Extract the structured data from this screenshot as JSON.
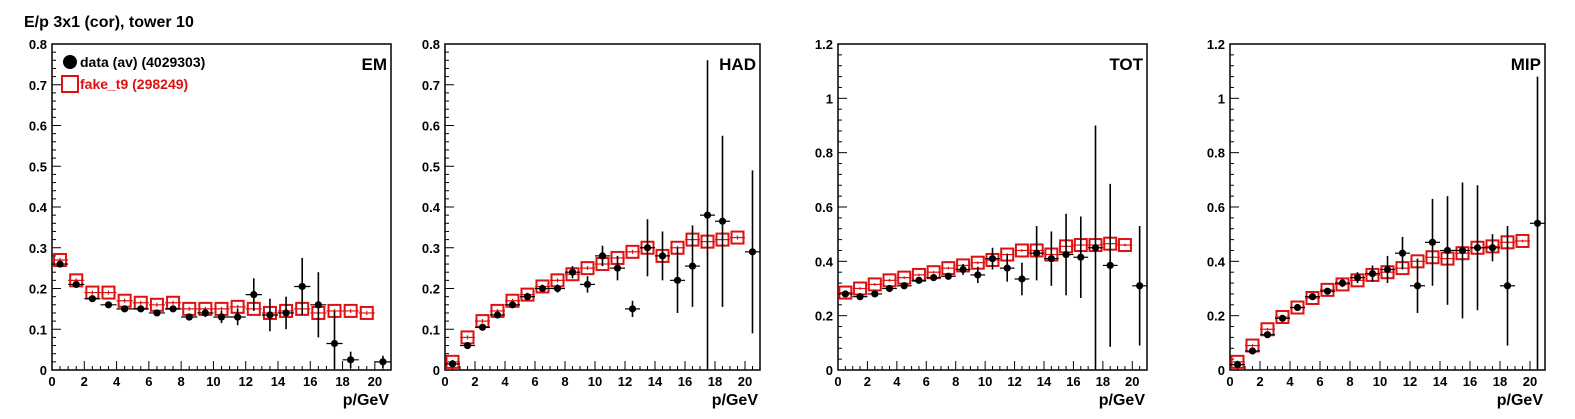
{
  "figure": {
    "title": "E/p 3x1 (cor), tower 10",
    "legend": [
      {
        "label": "data (av) (4029303)",
        "color": "#000000",
        "marker": "filled-circle"
      },
      {
        "label": "fake_t9 (298249)",
        "color": "#dd1111",
        "marker": "open-square"
      }
    ]
  },
  "chart_data": [
    {
      "type": "scatter",
      "label": "EM",
      "xlabel": "p/GeV",
      "xlim": [
        0,
        21
      ],
      "ylim": [
        0,
        0.8
      ],
      "xticks": [
        0,
        2,
        4,
        6,
        8,
        10,
        12,
        14,
        16,
        18,
        20
      ],
      "yticks": [
        0,
        0.1,
        0.2,
        0.3,
        0.4,
        0.5,
        0.6,
        0.7,
        0.8
      ],
      "series": [
        {
          "name": "data (av) (4029303)",
          "x": [
            0.5,
            1.5,
            2.5,
            3.5,
            4.5,
            5.5,
            6.5,
            7.5,
            8.5,
            9.5,
            10.5,
            11.5,
            12.5,
            13.5,
            14.5,
            15.5,
            16.5,
            17.5,
            18.5,
            20.5
          ],
          "y": [
            0.26,
            0.21,
            0.175,
            0.16,
            0.15,
            0.15,
            0.14,
            0.15,
            0.13,
            0.14,
            0.13,
            0.13,
            0.185,
            0.135,
            0.14,
            0.205,
            0.16,
            0.065,
            0.025,
            0.02
          ],
          "yerr": [
            0.004,
            0.004,
            0.004,
            0.004,
            0.005,
            0.005,
            0.006,
            0.007,
            0.008,
            0.01,
            0.015,
            0.02,
            0.04,
            0.04,
            0.04,
            0.07,
            0.08,
            0.08,
            0.02,
            0.015
          ]
        },
        {
          "name": "fake_t9 (298249)",
          "x": [
            0.5,
            1.5,
            2.5,
            3.5,
            4.5,
            5.5,
            6.5,
            7.5,
            8.5,
            9.5,
            10.5,
            11.5,
            12.5,
            13.5,
            14.5,
            15.5,
            16.5,
            17.5,
            18.5,
            19.5
          ],
          "y": [
            0.27,
            0.22,
            0.19,
            0.19,
            0.17,
            0.165,
            0.16,
            0.165,
            0.15,
            0.15,
            0.15,
            0.155,
            0.15,
            0.14,
            0.145,
            0.15,
            0.14,
            0.145,
            0.145,
            0.14
          ],
          "yerr": [
            0.005,
            0.005,
            0.005,
            0.005,
            0.005,
            0.005,
            0.005,
            0.005,
            0.005,
            0.005,
            0.005,
            0.005,
            0.005,
            0.005,
            0.005,
            0.005,
            0.005,
            0.005,
            0.005,
            0.005
          ]
        }
      ]
    },
    {
      "type": "scatter",
      "label": "HAD",
      "xlabel": "p/GeV",
      "xlim": [
        0,
        21
      ],
      "ylim": [
        0,
        0.8
      ],
      "xticks": [
        0,
        2,
        4,
        6,
        8,
        10,
        12,
        14,
        16,
        18,
        20
      ],
      "yticks": [
        0,
        0.1,
        0.2,
        0.3,
        0.4,
        0.5,
        0.6,
        0.7,
        0.8
      ],
      "series": [
        {
          "name": "data (av) (4029303)",
          "x": [
            0.5,
            1.5,
            2.5,
            3.5,
            4.5,
            5.5,
            6.5,
            7.5,
            8.5,
            9.5,
            10.5,
            11.5,
            12.5,
            13.5,
            14.5,
            15.5,
            16.5,
            17.5,
            18.5,
            20.5
          ],
          "y": [
            0.015,
            0.06,
            0.105,
            0.135,
            0.16,
            0.18,
            0.2,
            0.2,
            0.24,
            0.21,
            0.28,
            0.25,
            0.15,
            0.3,
            0.28,
            0.22,
            0.255,
            0.38,
            0.365,
            0.29
          ],
          "yerr": [
            0.003,
            0.004,
            0.005,
            0.005,
            0.006,
            0.007,
            0.008,
            0.01,
            0.015,
            0.02,
            0.025,
            0.03,
            0.02,
            0.07,
            0.06,
            0.08,
            0.1,
            0.38,
            0.21,
            0.2
          ]
        },
        {
          "name": "fake_t9 (298249)",
          "x": [
            0.5,
            1.5,
            2.5,
            3.5,
            4.5,
            5.5,
            6.5,
            7.5,
            8.5,
            9.5,
            10.5,
            11.5,
            12.5,
            13.5,
            14.5,
            15.5,
            16.5,
            17.5,
            18.5,
            19.5
          ],
          "y": [
            0.02,
            0.08,
            0.12,
            0.145,
            0.17,
            0.185,
            0.205,
            0.22,
            0.235,
            0.25,
            0.26,
            0.275,
            0.29,
            0.3,
            0.28,
            0.3,
            0.32,
            0.315,
            0.32,
            0.325
          ],
          "yerr": [
            0.005,
            0.005,
            0.005,
            0.005,
            0.005,
            0.005,
            0.005,
            0.005,
            0.005,
            0.005,
            0.005,
            0.005,
            0.005,
            0.005,
            0.005,
            0.005,
            0.005,
            0.005,
            0.005,
            0.005
          ]
        }
      ]
    },
    {
      "type": "scatter",
      "label": "TOT",
      "xlabel": "p/GeV",
      "xlim": [
        0,
        21
      ],
      "ylim": [
        0,
        1.2
      ],
      "xticks": [
        0,
        2,
        4,
        6,
        8,
        10,
        12,
        14,
        16,
        18,
        20
      ],
      "yticks": [
        0,
        0.2,
        0.4,
        0.6,
        0.8,
        1,
        1.2
      ],
      "series": [
        {
          "name": "data (av) (4029303)",
          "x": [
            0.5,
            1.5,
            2.5,
            3.5,
            4.5,
            5.5,
            6.5,
            7.5,
            8.5,
            9.5,
            10.5,
            11.5,
            12.5,
            13.5,
            14.5,
            15.5,
            16.5,
            17.5,
            18.5,
            20.5
          ],
          "y": [
            0.28,
            0.27,
            0.28,
            0.3,
            0.31,
            0.33,
            0.34,
            0.345,
            0.37,
            0.35,
            0.41,
            0.375,
            0.335,
            0.43,
            0.41,
            0.425,
            0.415,
            0.45,
            0.385,
            0.31
          ],
          "yerr": [
            0.004,
            0.005,
            0.005,
            0.006,
            0.007,
            0.008,
            0.01,
            0.012,
            0.02,
            0.03,
            0.04,
            0.05,
            0.06,
            0.1,
            0.1,
            0.15,
            0.15,
            0.45,
            0.3,
            0.22
          ]
        },
        {
          "name": "fake_t9 (298249)",
          "x": [
            0.5,
            1.5,
            2.5,
            3.5,
            4.5,
            5.5,
            6.5,
            7.5,
            8.5,
            9.5,
            10.5,
            11.5,
            12.5,
            13.5,
            14.5,
            15.5,
            16.5,
            17.5,
            18.5,
            19.5
          ],
          "y": [
            0.285,
            0.3,
            0.315,
            0.33,
            0.34,
            0.35,
            0.36,
            0.375,
            0.385,
            0.395,
            0.405,
            0.425,
            0.44,
            0.44,
            0.425,
            0.455,
            0.46,
            0.46,
            0.465,
            0.46
          ],
          "yerr": [
            0.005,
            0.005,
            0.005,
            0.005,
            0.005,
            0.005,
            0.005,
            0.005,
            0.005,
            0.005,
            0.005,
            0.005,
            0.005,
            0.005,
            0.005,
            0.005,
            0.005,
            0.005,
            0.005,
            0.005
          ]
        }
      ]
    },
    {
      "type": "scatter",
      "label": "MIP",
      "xlabel": "p/GeV",
      "xlim": [
        0,
        21
      ],
      "ylim": [
        0,
        1.2
      ],
      "xticks": [
        0,
        2,
        4,
        6,
        8,
        10,
        12,
        14,
        16,
        18,
        20
      ],
      "yticks": [
        0,
        0.2,
        0.4,
        0.6,
        0.8,
        1,
        1.2
      ],
      "series": [
        {
          "name": "data (av) (4029303)",
          "x": [
            0.5,
            1.5,
            2.5,
            3.5,
            4.5,
            5.5,
            6.5,
            7.5,
            8.5,
            9.5,
            10.5,
            11.5,
            12.5,
            13.5,
            14.5,
            15.5,
            16.5,
            17.5,
            18.5,
            20.5
          ],
          "y": [
            0.02,
            0.07,
            0.13,
            0.19,
            0.23,
            0.27,
            0.29,
            0.32,
            0.34,
            0.355,
            0.37,
            0.43,
            0.31,
            0.47,
            0.44,
            0.44,
            0.45,
            0.45,
            0.31,
            0.54
          ],
          "yerr": [
            0.003,
            0.004,
            0.005,
            0.006,
            0.008,
            0.01,
            0.012,
            0.015,
            0.02,
            0.03,
            0.05,
            0.06,
            0.1,
            0.16,
            0.2,
            0.25,
            0.23,
            0.05,
            0.22,
            0.54
          ]
        },
        {
          "name": "fake_t9 (298249)",
          "x": [
            0.5,
            1.5,
            2.5,
            3.5,
            4.5,
            5.5,
            6.5,
            7.5,
            8.5,
            9.5,
            10.5,
            11.5,
            12.5,
            13.5,
            14.5,
            15.5,
            16.5,
            17.5,
            18.5,
            19.5
          ],
          "y": [
            0.03,
            0.09,
            0.15,
            0.195,
            0.23,
            0.265,
            0.295,
            0.315,
            0.33,
            0.35,
            0.36,
            0.375,
            0.4,
            0.415,
            0.41,
            0.43,
            0.45,
            0.455,
            0.47,
            0.475
          ],
          "yerr": [
            0.005,
            0.005,
            0.005,
            0.005,
            0.005,
            0.005,
            0.005,
            0.005,
            0.005,
            0.005,
            0.005,
            0.005,
            0.005,
            0.005,
            0.005,
            0.005,
            0.005,
            0.005,
            0.005,
            0.005
          ]
        }
      ]
    }
  ]
}
